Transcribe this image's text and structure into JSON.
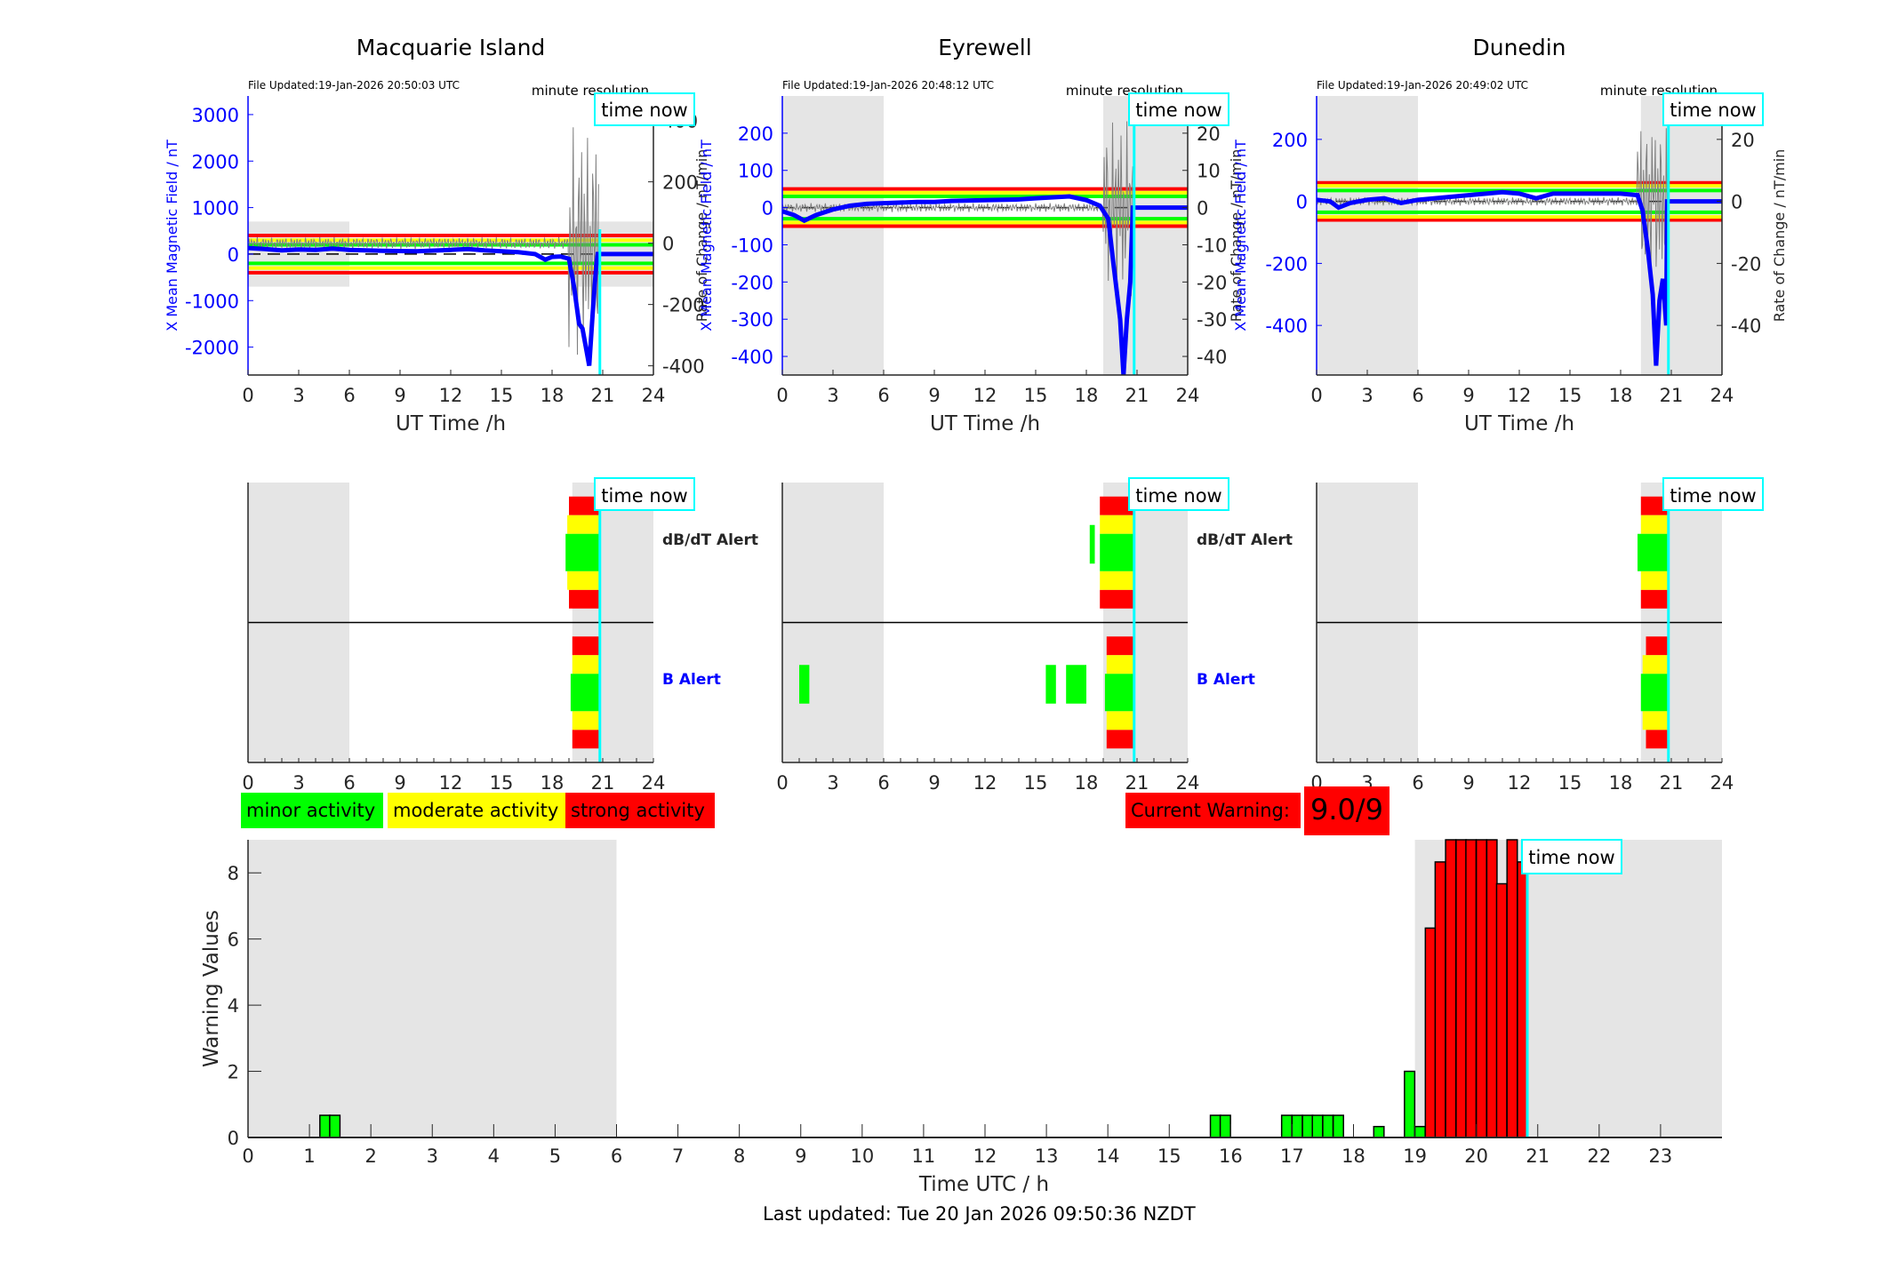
{
  "colors": {
    "minor": "#00ff00",
    "moderate": "#ffff00",
    "strong": "#ff0000",
    "field": "#0000ff",
    "rate": "#808080",
    "time_now": "#00ffff",
    "shade": "#e5e5e5",
    "axis": "#262626"
  },
  "time_now_label": "time now",
  "time_now_h": 20.83,
  "stations": [
    {
      "name": "Macquarie Island",
      "file_updated": "File Updated:19-Jan-2026 20:50:03 UTC",
      "resolution": "minute resolution",
      "left_ylabel": "X Mean Magnetic Field / nT",
      "right_ylabel": "Rate of Change / nT/min",
      "left_ylim": [
        -2600,
        3400
      ],
      "left_ticks": [
        -2000,
        -1000,
        0,
        1000,
        2000,
        3000
      ],
      "right_ylim": [
        -430,
        480
      ],
      "right_ticks": [
        -400,
        -200,
        0,
        200,
        400
      ],
      "night_shade": [
        [
          0,
          6,
          -700,
          700
        ],
        [
          19.2,
          24,
          -700,
          700
        ]
      ],
      "thresholds_left": {
        "green": 200,
        "yellow": 300,
        "red": 400
      },
      "field_series": [
        [
          0,
          130
        ],
        [
          1,
          110
        ],
        [
          2,
          80
        ],
        [
          3,
          100
        ],
        [
          4,
          90
        ],
        [
          5,
          120
        ],
        [
          6,
          90
        ],
        [
          8,
          70
        ],
        [
          10,
          60
        ],
        [
          12,
          90
        ],
        [
          13,
          110
        ],
        [
          14,
          80
        ],
        [
          16,
          40
        ],
        [
          17,
          0
        ],
        [
          17.6,
          -120
        ],
        [
          18,
          -60
        ],
        [
          18.5,
          -50
        ],
        [
          19,
          -100
        ],
        [
          19.3,
          -700
        ],
        [
          19.6,
          -1500
        ],
        [
          19.8,
          -1600
        ],
        [
          20,
          -2000
        ],
        [
          20.2,
          -2400
        ],
        [
          20.4,
          -1300
        ],
        [
          20.6,
          -300
        ],
        [
          20.7,
          0
        ],
        [
          24,
          0
        ]
      ],
      "alerts": {
        "dbdt": [
          {
            "start": 19.0,
            "end": 20.8,
            "level": "red"
          },
          {
            "start": 18.9,
            "end": 20.8,
            "level": "yellow"
          },
          {
            "start": 18.8,
            "end": 20.8,
            "level": "green"
          }
        ],
        "b": [
          {
            "start": 19.2,
            "end": 20.8,
            "level": "red"
          },
          {
            "start": 19.2,
            "end": 20.8,
            "level": "yellow"
          },
          {
            "start": 19.1,
            "end": 20.8,
            "level": "green"
          }
        ]
      }
    },
    {
      "name": "Eyrewell",
      "file_updated": "File Updated:19-Jan-2026 20:48:12 UTC",
      "resolution": "minute resolution",
      "left_ylabel": "X Mean Magnetic Field / nT",
      "right_ylabel": "Rate of Change / nT/min",
      "left_ylim": [
        -450,
        300
      ],
      "left_ticks": [
        -400,
        -300,
        -200,
        -100,
        0,
        100,
        200
      ],
      "right_ylim": [
        -45,
        30
      ],
      "right_ticks": [
        -40,
        -30,
        -20,
        -10,
        0,
        10,
        20
      ],
      "night_shade": [
        [
          0,
          6,
          -450,
          300
        ],
        [
          19.0,
          24,
          -450,
          300
        ]
      ],
      "thresholds_left": {
        "green": 30,
        "yellow": 40,
        "red": 50
      },
      "field_series": [
        [
          0,
          -10
        ],
        [
          0.7,
          -20
        ],
        [
          1.3,
          -35
        ],
        [
          2,
          -20
        ],
        [
          3,
          -5
        ],
        [
          4,
          5
        ],
        [
          5,
          10
        ],
        [
          6,
          12
        ],
        [
          8,
          15
        ],
        [
          9,
          15
        ],
        [
          10,
          18
        ],
        [
          12,
          20
        ],
        [
          14,
          22
        ],
        [
          15,
          25
        ],
        [
          17,
          30
        ],
        [
          18,
          20
        ],
        [
          18.8,
          5
        ],
        [
          19.3,
          -30
        ],
        [
          19.6,
          -150
        ],
        [
          20,
          -300
        ],
        [
          20.2,
          -450
        ],
        [
          20.4,
          -300
        ],
        [
          20.6,
          -200
        ],
        [
          20.75,
          0
        ],
        [
          24,
          0
        ]
      ],
      "alerts": {
        "dbdt": [
          {
            "start": 18.8,
            "end": 20.8,
            "level": "red"
          },
          {
            "start": 18.8,
            "end": 20.8,
            "level": "yellow"
          },
          {
            "start": 18.8,
            "end": 20.8,
            "level": "green"
          },
          {
            "start": 18.2,
            "end": 18.5,
            "level": "green",
            "single": true
          }
        ],
        "b": [
          {
            "start": 19.2,
            "end": 20.8,
            "level": "red"
          },
          {
            "start": 19.2,
            "end": 20.8,
            "level": "yellow"
          },
          {
            "start": 19.1,
            "end": 20.8,
            "level": "green"
          },
          {
            "start": 1.0,
            "end": 1.6,
            "level": "green",
            "single": true
          },
          {
            "start": 15.6,
            "end": 16.2,
            "level": "green",
            "single": true
          },
          {
            "start": 16.8,
            "end": 18.0,
            "level": "green",
            "single": true
          }
        ]
      }
    },
    {
      "name": "Dunedin",
      "file_updated": "File Updated:19-Jan-2026 20:49:02 UTC",
      "resolution": "minute resolution",
      "left_ylabel": "X Mean Magnetic Field / nT",
      "right_ylabel": "Rate of Change / nT/min",
      "left_ylim": [
        -560,
        340
      ],
      "left_ticks": [
        -400,
        -200,
        0,
        200
      ],
      "right_ylim": [
        -56,
        34
      ],
      "right_ticks": [
        -40,
        -20,
        0,
        20
      ],
      "night_shade": [
        [
          0,
          6,
          -560,
          340
        ],
        [
          19.2,
          24,
          -560,
          340
        ]
      ],
      "thresholds_left": {
        "green": 35,
        "yellow": 50,
        "red": 60
      },
      "field_series": [
        [
          0,
          5
        ],
        [
          0.8,
          0
        ],
        [
          1.3,
          -20
        ],
        [
          2,
          -5
        ],
        [
          3,
          5
        ],
        [
          4,
          10
        ],
        [
          5,
          -5
        ],
        [
          6,
          5
        ],
        [
          7,
          10
        ],
        [
          9,
          20
        ],
        [
          11,
          30
        ],
        [
          12,
          25
        ],
        [
          13,
          10
        ],
        [
          14,
          25
        ],
        [
          16,
          25
        ],
        [
          18,
          25
        ],
        [
          19,
          20
        ],
        [
          19.3,
          -30
        ],
        [
          19.6,
          -150
        ],
        [
          19.9,
          -300
        ],
        [
          20.1,
          -530
        ],
        [
          20.3,
          -320
        ],
        [
          20.5,
          -250
        ],
        [
          20.7,
          -400
        ],
        [
          20.75,
          0
        ],
        [
          24,
          0
        ]
      ],
      "alerts": {
        "dbdt": [
          {
            "start": 19.2,
            "end": 20.8,
            "level": "red"
          },
          {
            "start": 19.2,
            "end": 20.8,
            "level": "yellow"
          },
          {
            "start": 19.0,
            "end": 20.8,
            "level": "green"
          }
        ],
        "b": [
          {
            "start": 19.5,
            "end": 20.8,
            "level": "red"
          },
          {
            "start": 19.3,
            "end": 20.8,
            "level": "yellow"
          },
          {
            "start": 19.2,
            "end": 20.8,
            "level": "green"
          }
        ]
      }
    }
  ],
  "alert_labels": {
    "dbdt": "dB/dT Alert",
    "b": "B Alert"
  },
  "top_xlabel": "UT Time /h",
  "top_xticks": [
    0,
    3,
    6,
    9,
    12,
    15,
    18,
    21,
    24
  ],
  "legend": [
    {
      "label": "minor activity",
      "level": "minor"
    },
    {
      "label": "moderate activity",
      "level": "moderate"
    },
    {
      "label": "strong activity",
      "level": "strong"
    }
  ],
  "current_warning": {
    "label": "Current Warning:",
    "value": "9.0/9"
  },
  "chart_data": {
    "type": "bar",
    "title": "",
    "xlabel": "Time UTC / h",
    "ylabel": "Warning Values",
    "xlim": [
      0,
      24
    ],
    "ylim": [
      0,
      9
    ],
    "xticks": [
      0,
      1,
      2,
      3,
      4,
      5,
      6,
      7,
      8,
      9,
      10,
      11,
      12,
      13,
      14,
      15,
      16,
      17,
      18,
      19,
      20,
      21,
      22,
      23
    ],
    "yticks": [
      0,
      2,
      4,
      6,
      8
    ],
    "bin_width_h": 0.1667,
    "night_shade": [
      [
        0,
        6
      ],
      [
        19.0,
        24
      ]
    ],
    "bars": [
      {
        "x": 1.17,
        "value": 0.67,
        "level": "minor"
      },
      {
        "x": 1.33,
        "value": 0.67,
        "level": "minor"
      },
      {
        "x": 15.67,
        "value": 0.67,
        "level": "minor"
      },
      {
        "x": 15.83,
        "value": 0.67,
        "level": "minor"
      },
      {
        "x": 16.83,
        "value": 0.67,
        "level": "minor"
      },
      {
        "x": 17.0,
        "value": 0.67,
        "level": "minor"
      },
      {
        "x": 17.17,
        "value": 0.67,
        "level": "minor"
      },
      {
        "x": 17.33,
        "value": 0.67,
        "level": "minor"
      },
      {
        "x": 17.5,
        "value": 0.67,
        "level": "minor"
      },
      {
        "x": 17.67,
        "value": 0.67,
        "level": "minor"
      },
      {
        "x": 18.33,
        "value": 0.33,
        "level": "minor"
      },
      {
        "x": 18.83,
        "value": 2.0,
        "level": "minor"
      },
      {
        "x": 19.0,
        "value": 0.33,
        "level": "minor"
      },
      {
        "x": 19.17,
        "value": 6.33,
        "level": "strong"
      },
      {
        "x": 19.33,
        "value": 8.33,
        "level": "strong"
      },
      {
        "x": 19.5,
        "value": 9.0,
        "level": "strong"
      },
      {
        "x": 19.67,
        "value": 9.0,
        "level": "strong"
      },
      {
        "x": 19.83,
        "value": 9.0,
        "level": "strong"
      },
      {
        "x": 20.0,
        "value": 9.0,
        "level": "strong"
      },
      {
        "x": 20.17,
        "value": 9.0,
        "level": "strong"
      },
      {
        "x": 20.33,
        "value": 7.67,
        "level": "strong"
      },
      {
        "x": 20.5,
        "value": 9.0,
        "level": "strong"
      },
      {
        "x": 20.67,
        "value": 8.33,
        "level": "strong"
      }
    ]
  },
  "footer": {
    "last_updated": "Last updated: Tue 20 Jan 2026 09:50:36 NZDT"
  }
}
